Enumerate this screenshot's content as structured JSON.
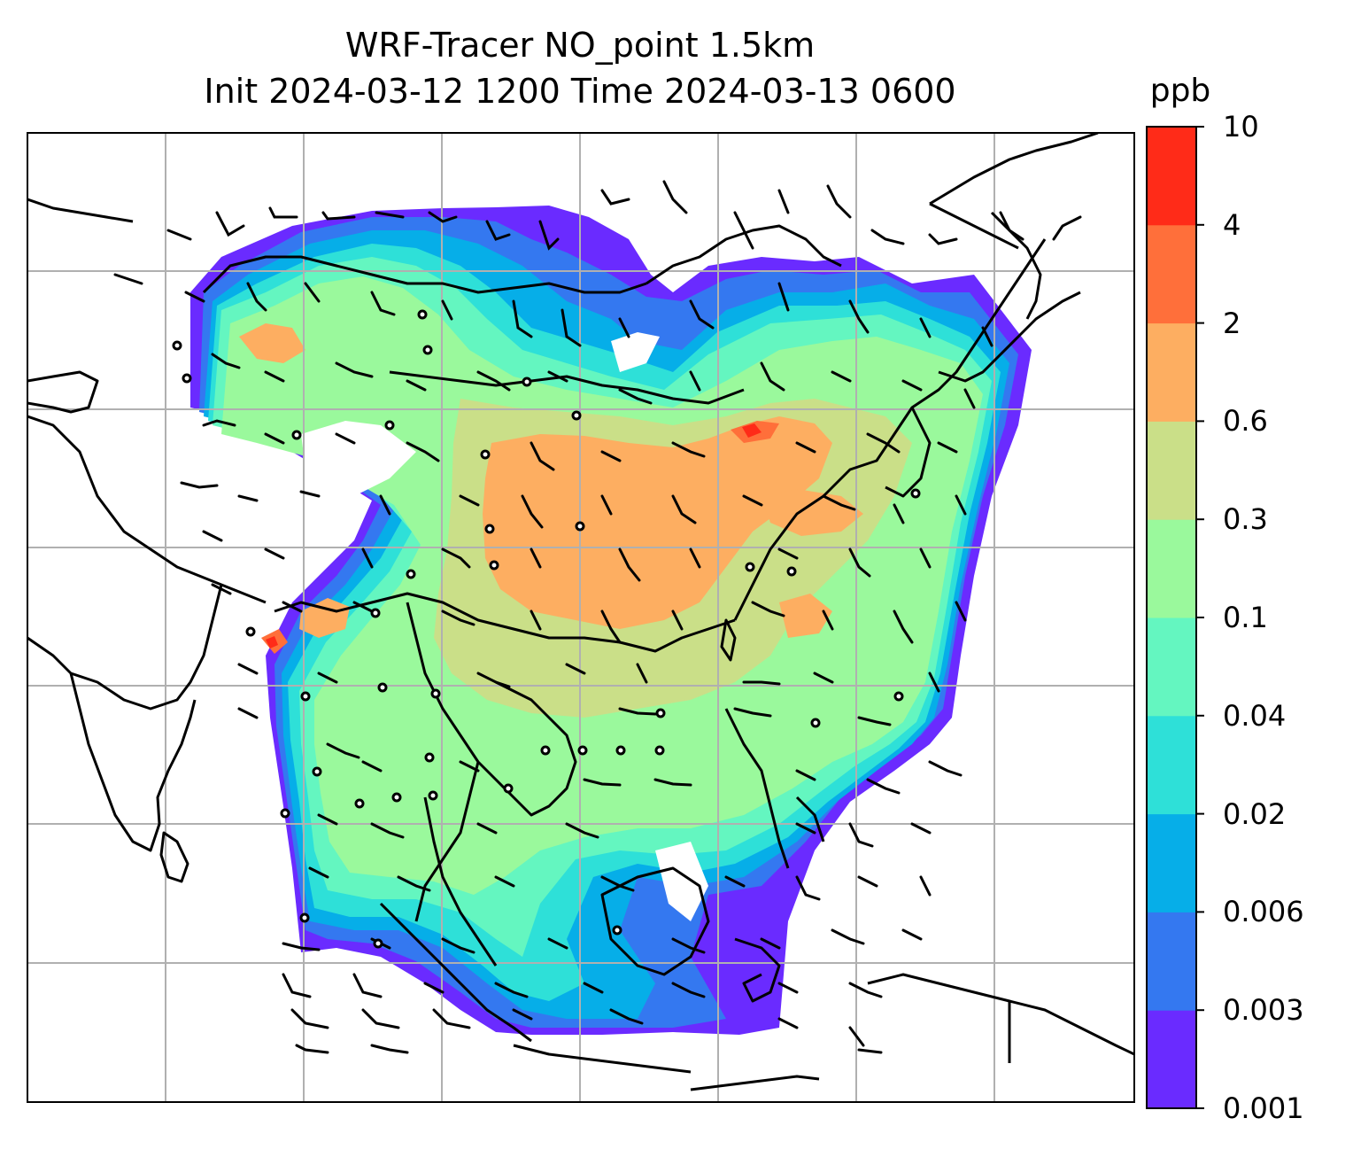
{
  "title": {
    "line1": "WRF-Tracer NO_point 1.5km",
    "line2": "Init 2024-03-12 1200 Time 2024-03-13 0600"
  },
  "colorbar": {
    "unit": "ppb",
    "levels": [
      "0.001",
      "0.003",
      "0.006",
      "0.02",
      "0.04",
      "0.1",
      "0.3",
      "0.6",
      "2",
      "4",
      "10"
    ],
    "colors": [
      "#6a2bff",
      "#3478f0",
      "#06aee8",
      "#2ee0d8",
      "#64f6c0",
      "#9af99c",
      "#cadf88",
      "#fdae61",
      "#ff6f3a",
      "#ff2b18"
    ]
  },
  "map": {
    "background": "#ffffff",
    "frame_color": "#000000",
    "gridline_color": "#b0b0b0",
    "coastline_color": "#000000",
    "wind_barb_color": "#000000"
  }
}
